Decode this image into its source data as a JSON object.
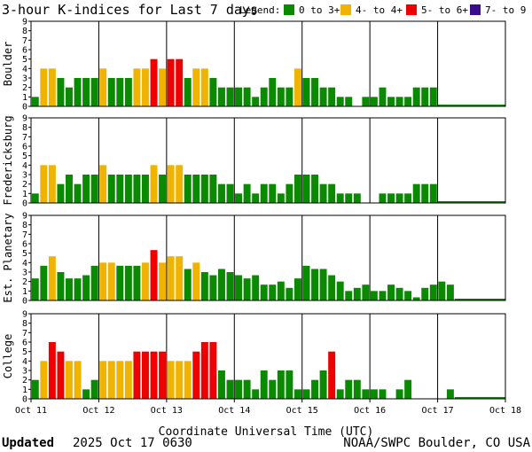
{
  "title": "3-hour K-indices for Last 7 days",
  "legend": {
    "label": "Legend:",
    "items": [
      {
        "label": "0 to 3+",
        "color": "#0a8a00"
      },
      {
        "label": "4- to 4+",
        "color": "#f0b400"
      },
      {
        "label": "5- to 6+",
        "color": "#ee0000"
      },
      {
        "label": "7- to 9",
        "color": "#3a0b8c"
      }
    ]
  },
  "x_axis": {
    "title": "Coordinate Universal Time (UTC)",
    "tick_labels": [
      "Oct 11",
      "Oct 12",
      "Oct 13",
      "Oct 14",
      "Oct 15",
      "Oct 16",
      "Oct 17",
      "Oct 18"
    ]
  },
  "y_tick_labels": [
    "0",
    "1",
    "2",
    "3",
    "4",
    "5",
    "6",
    "7",
    "8",
    "9"
  ],
  "footer": {
    "updated_label": "Updated",
    "updated_value": "2025 Oct 17 0630",
    "credit": "NOAA/SWPC Boulder, CO USA"
  },
  "chart_data": [
    {
      "type": "bar",
      "name": "Boulder",
      "interval_hours": 3,
      "x_start": "2025-10-11 00:00 UTC",
      "x_end": "2025-10-18 00:00 UTC",
      "ylim": [
        0,
        9
      ],
      "values": [
        1,
        4,
        4,
        3,
        2,
        3,
        3,
        3,
        4,
        3,
        3,
        3,
        4,
        4,
        5,
        4,
        5,
        5,
        3,
        4,
        4,
        3,
        2,
        2,
        2,
        2,
        1,
        2,
        3,
        2,
        2,
        4,
        3,
        3,
        2,
        2,
        1,
        1,
        0,
        1,
        1,
        2,
        1,
        1,
        1,
        2,
        2,
        2
      ]
    },
    {
      "type": "bar",
      "name": "Fredericksburg",
      "interval_hours": 3,
      "x_start": "2025-10-11 00:00 UTC",
      "x_end": "2025-10-18 00:00 UTC",
      "ylim": [
        0,
        9
      ],
      "values": [
        1,
        4,
        4,
        2,
        3,
        2,
        3,
        3,
        4,
        3,
        3,
        3,
        3,
        3,
        4,
        3,
        4,
        4,
        3,
        3,
        3,
        3,
        2,
        2,
        1,
        2,
        1,
        2,
        2,
        1,
        2,
        3,
        3,
        3,
        2,
        2,
        1,
        1,
        1,
        0,
        0,
        1,
        1,
        1,
        1,
        2,
        2,
        2
      ]
    },
    {
      "type": "bar",
      "name": "Est. Planetary",
      "interval_hours": 3,
      "x_start": "2025-10-11 00:00 UTC",
      "x_end": "2025-10-18 00:00 UTC",
      "ylim": [
        0,
        9
      ],
      "values": [
        2.33,
        3.67,
        4.67,
        3.0,
        2.33,
        2.33,
        2.67,
        3.67,
        4.0,
        4.0,
        3.67,
        3.67,
        3.67,
        4.0,
        5.33,
        4.0,
        4.67,
        4.67,
        3.33,
        4.0,
        3.0,
        2.67,
        3.33,
        3.0,
        2.67,
        2.33,
        2.67,
        1.67,
        1.67,
        2.0,
        1.33,
        2.33,
        3.67,
        3.33,
        3.33,
        2.67,
        2.0,
        1.0,
        1.33,
        1.67,
        1.0,
        1.0,
        1.67,
        1.33,
        1.0,
        0.33,
        1.33,
        1.67,
        2.0,
        1.67
      ]
    },
    {
      "type": "bar",
      "name": "College",
      "interval_hours": 3,
      "x_start": "2025-10-11 00:00 UTC",
      "x_end": "2025-10-18 00:00 UTC",
      "ylim": [
        0,
        9
      ],
      "values": [
        2,
        4,
        6,
        5,
        4,
        4,
        1,
        2,
        4,
        4,
        4,
        4,
        5,
        5,
        5,
        5,
        4,
        4,
        4,
        5,
        6,
        6,
        3,
        2,
        2,
        2,
        1,
        3,
        2,
        3,
        3,
        1,
        1,
        2,
        3,
        5,
        1,
        2,
        2,
        1,
        1,
        1,
        0,
        1,
        2,
        0,
        0,
        0,
        0,
        1
      ]
    }
  ]
}
